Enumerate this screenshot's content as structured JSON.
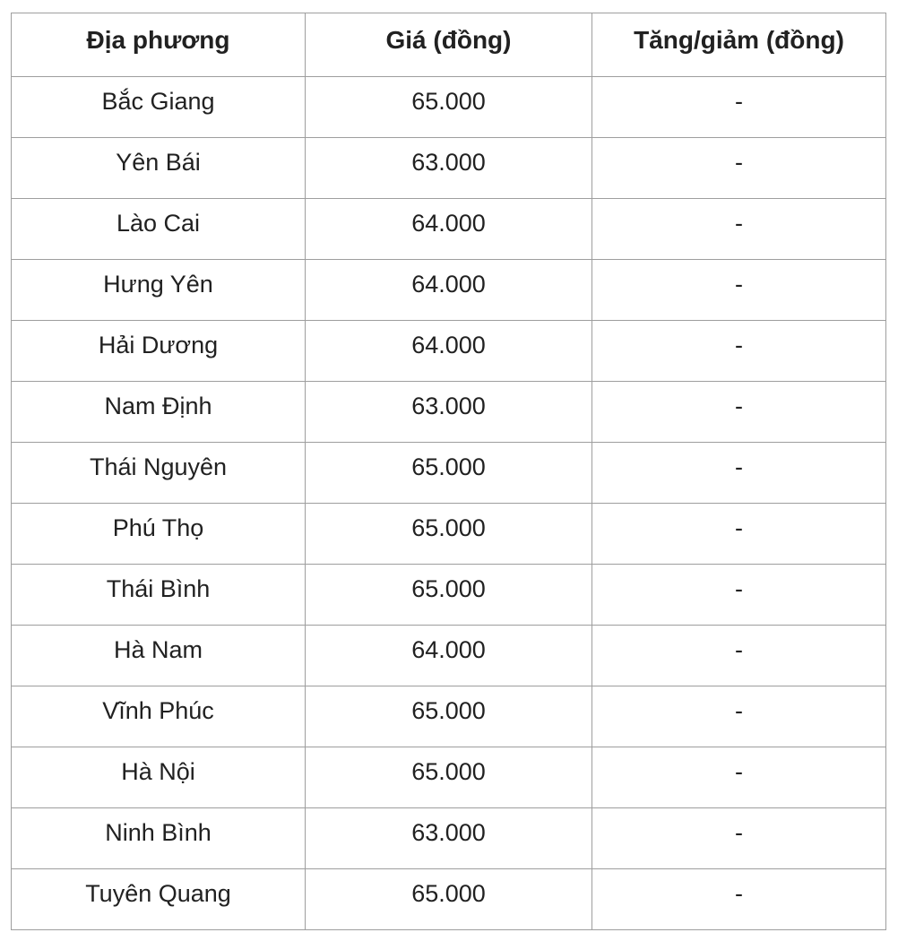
{
  "page": {
    "background_color": "#ffffff",
    "text_color": "#212121",
    "border_color": "#9e9e9e"
  },
  "table": {
    "headers": {
      "locality": "Địa phương",
      "price": "Giá (đồng)",
      "change": "Tăng/giảm (đồng)"
    },
    "rows": [
      {
        "locality": "Bắc Giang",
        "price": "65.000",
        "change": "-"
      },
      {
        "locality": "Yên Bái",
        "price": "63.000",
        "change": "-"
      },
      {
        "locality": "Lào Cai",
        "price": "64.000",
        "change": "-"
      },
      {
        "locality": "Hưng Yên",
        "price": "64.000",
        "change": "-"
      },
      {
        "locality": "Hải Dương",
        "price": "64.000",
        "change": "-"
      },
      {
        "locality": "Nam Định",
        "price": "63.000",
        "change": "-"
      },
      {
        "locality": "Thái Nguyên",
        "price": "65.000",
        "change": "-"
      },
      {
        "locality": "Phú Thọ",
        "price": "65.000",
        "change": "-"
      },
      {
        "locality": "Thái Bình",
        "price": "65.000",
        "change": "-"
      },
      {
        "locality": "Hà Nam",
        "price": "64.000",
        "change": "-"
      },
      {
        "locality": "Vĩnh Phúc",
        "price": "65.000",
        "change": "-"
      },
      {
        "locality": "Hà Nội",
        "price": "65.000",
        "change": "-"
      },
      {
        "locality": "Ninh Bình",
        "price": "63.000",
        "change": "-"
      },
      {
        "locality": "Tuyên Quang",
        "price": "65.000",
        "change": "-"
      }
    ]
  },
  "chart_data": {
    "type": "table",
    "columns": [
      "Địa phương",
      "Giá (đồng)",
      "Tăng/giảm (đồng)"
    ],
    "rows": [
      [
        "Bắc Giang",
        "65.000",
        "-"
      ],
      [
        "Yên Bái",
        "63.000",
        "-"
      ],
      [
        "Lào Cai",
        "64.000",
        "-"
      ],
      [
        "Hưng Yên",
        "64.000",
        "-"
      ],
      [
        "Hải Dương",
        "64.000",
        "-"
      ],
      [
        "Nam Định",
        "63.000",
        "-"
      ],
      [
        "Thái Nguyên",
        "65.000",
        "-"
      ],
      [
        "Phú Thọ",
        "65.000",
        "-"
      ],
      [
        "Thái Bình",
        "65.000",
        "-"
      ],
      [
        "Hà Nam",
        "64.000",
        "-"
      ],
      [
        "Vĩnh Phúc",
        "65.000",
        "-"
      ],
      [
        "Hà Nội",
        "65.000",
        "-"
      ],
      [
        "Ninh Bình",
        "63.000",
        "-"
      ],
      [
        "Tuyên Quang",
        "65.000",
        "-"
      ]
    ]
  }
}
